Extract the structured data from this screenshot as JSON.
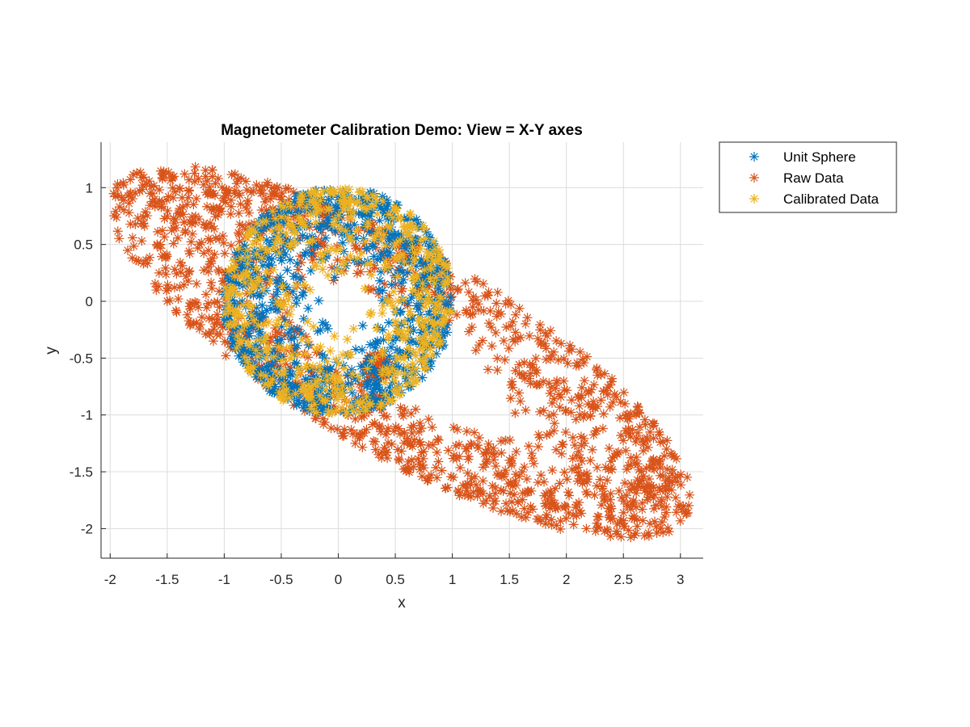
{
  "chart_data": {
    "type": "scatter",
    "title": "Magnetometer Calibration Demo: View = X-Y axes",
    "xlabel": "x",
    "ylabel": "y",
    "xlim": [
      -2.08,
      3.2
    ],
    "ylim": [
      -2.26,
      1.4
    ],
    "xticks": [
      -2,
      -1.5,
      -1,
      -0.5,
      0,
      0.5,
      1,
      1.5,
      2,
      2.5,
      3
    ],
    "yticks": [
      -2,
      -1.5,
      -1,
      -0.5,
      0,
      0.5,
      1
    ],
    "xtick_labels": [
      "-2",
      "-1.5",
      "-1",
      "-0.5",
      "0",
      "0.5",
      "1",
      "1.5",
      "2",
      "2.5",
      "3"
    ],
    "ytick_labels": [
      "-2",
      "-1.5",
      "-1",
      "-0.5",
      "0",
      "0.5",
      "1"
    ],
    "grid": true,
    "legend_position": "outside-top-right",
    "marker": "asterisk",
    "series": [
      {
        "name": "Unit Sphere",
        "color": "#0072BD",
        "shape": "disk",
        "center": [
          0,
          0
        ],
        "radius": 1.0
      },
      {
        "name": "Raw Data",
        "color": "#D95319",
        "shape": "rotated ellipse",
        "center": [
          0.55,
          -0.45
        ],
        "semi_axes": [
          2.9,
          0.9
        ],
        "rotation_deg": -30
      },
      {
        "name": "Calibrated Data",
        "color": "#EDB120",
        "shape": "disk",
        "center": [
          0,
          0
        ],
        "radius": 1.0
      }
    ]
  }
}
